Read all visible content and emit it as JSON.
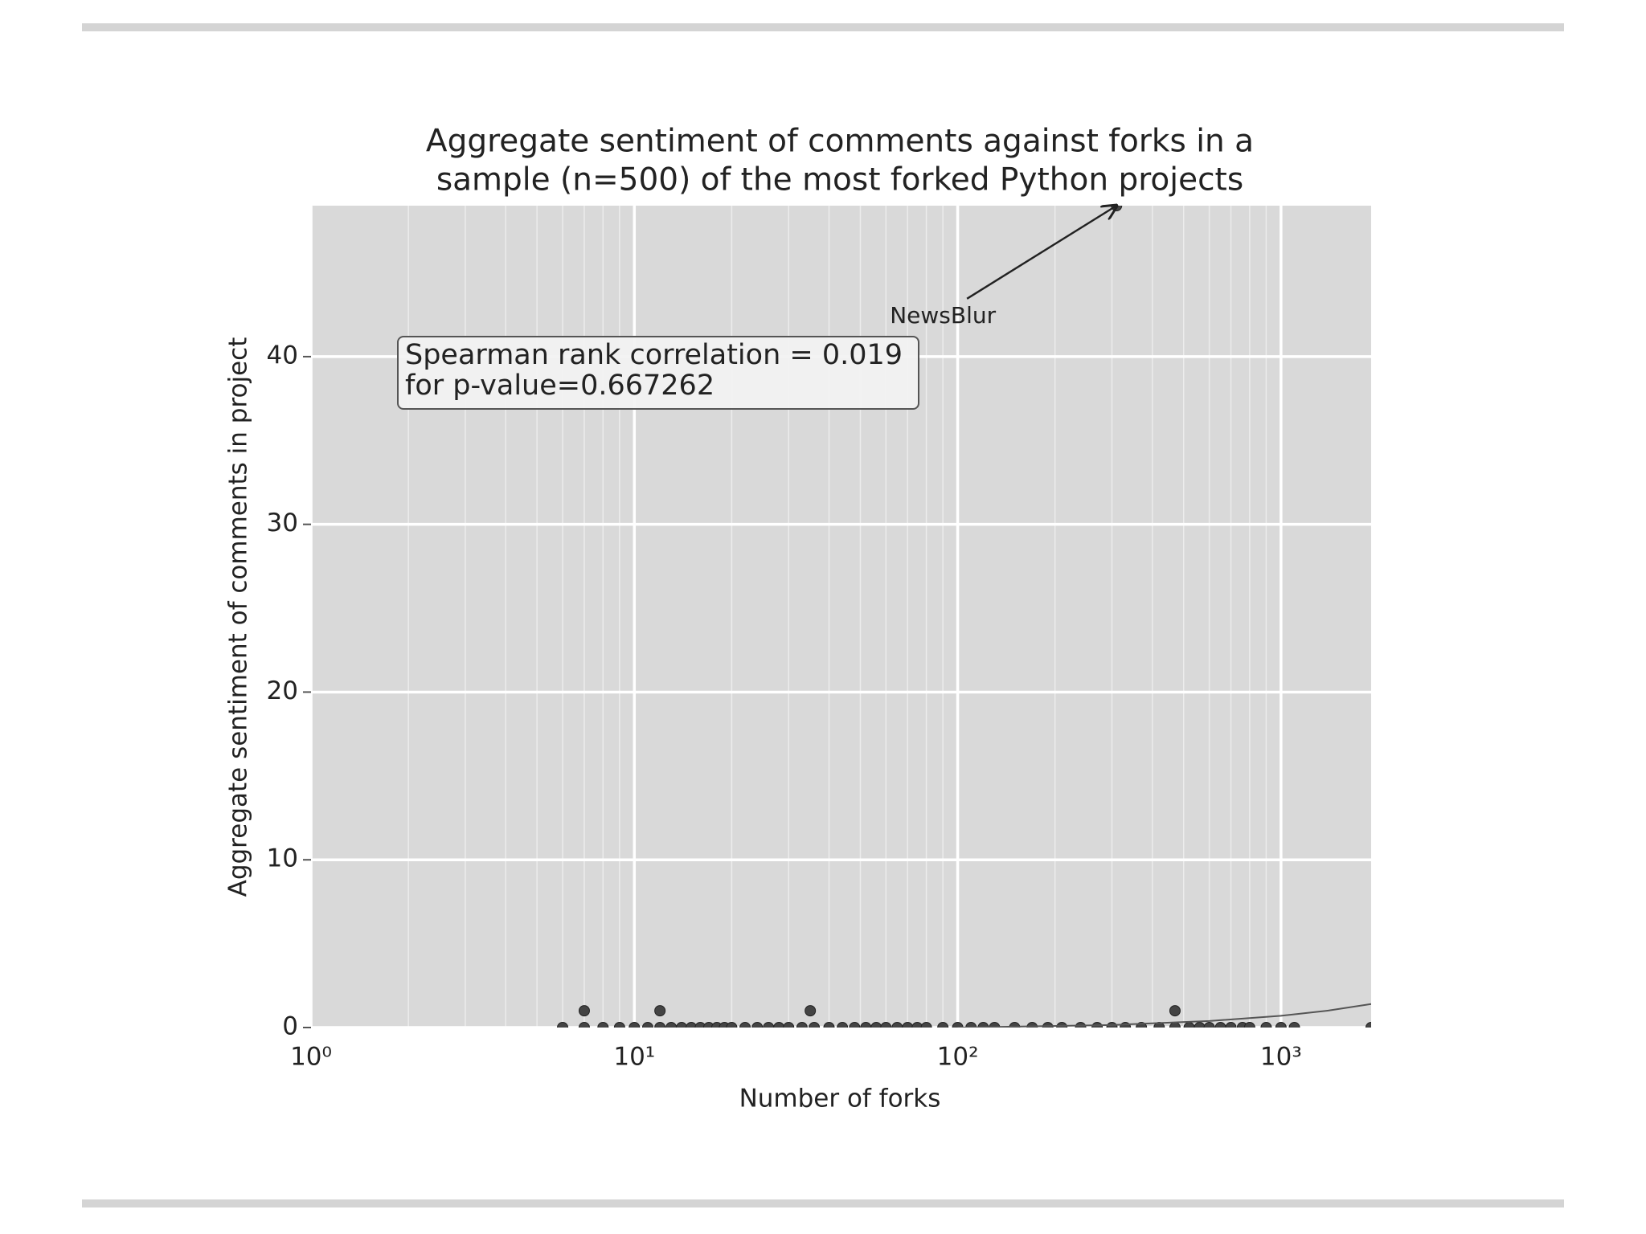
{
  "chart_data": {
    "type": "scatter",
    "title": [
      "Aggregate sentiment of comments against forks in a",
      "sample (n=500) of the most forked Python projects"
    ],
    "xlabel": "Number of forks",
    "ylabel": "Aggregate sentiment of comments in project",
    "x_log_scale": true,
    "grid": true,
    "xlim": [
      1,
      1900
    ],
    "ylim": [
      0,
      49
    ],
    "xticks": [
      {
        "value": 1,
        "label": "10⁰"
      },
      {
        "value": 10,
        "label": "10¹"
      },
      {
        "value": 100,
        "label": "10²"
      },
      {
        "value": 1000,
        "label": "10³"
      }
    ],
    "x_minor_ticks": [
      2,
      3,
      4,
      5,
      6,
      7,
      8,
      9,
      20,
      30,
      40,
      50,
      60,
      70,
      80,
      90,
      200,
      300,
      400,
      500,
      600,
      700,
      800,
      900
    ],
    "yticks": [
      0,
      10,
      20,
      30,
      40
    ],
    "series": [
      {
        "color": "#444444",
        "x": [
          6,
          7,
          8,
          9,
          10,
          11,
          12,
          13,
          14,
          15,
          16,
          17,
          18,
          19,
          20,
          22,
          24,
          26,
          28,
          30,
          33,
          36,
          40,
          44,
          48,
          52,
          56,
          60,
          65,
          70,
          75,
          80,
          90,
          100,
          110,
          120,
          130,
          150,
          170,
          190,
          210,
          240,
          270,
          300,
          330,
          370,
          420,
          470,
          520,
          560,
          600,
          650,
          700,
          760,
          800,
          900,
          1000,
          1100,
          1900,
          7,
          12,
          35,
          470,
          310
        ],
        "values": [
          0,
          0,
          0,
          0,
          0,
          0,
          0,
          0,
          0,
          0,
          0,
          0,
          0,
          0,
          0,
          0,
          0,
          0,
          0,
          0,
          0,
          0,
          0,
          0,
          0,
          0,
          0,
          0,
          0,
          0,
          0,
          0,
          0,
          0,
          0,
          0,
          0,
          0,
          0,
          0,
          0,
          0,
          0,
          0,
          0,
          0,
          0,
          0,
          0,
          0,
          0,
          0,
          0,
          0,
          0,
          0,
          0,
          0,
          0,
          1,
          1,
          1,
          1,
          49
        ]
      }
    ],
    "fit": {
      "color": "#555555",
      "x": [
        100,
        300,
        600,
        1000,
        1400,
        1900
      ],
      "values": [
        0,
        0.15,
        0.39,
        0.7,
        1.01,
        1.4
      ]
    },
    "text_box": [
      "Spearman rank correlation = 0.019",
      "for p-value=0.667262"
    ],
    "annotation": {
      "text": "NewsBlur",
      "x": 90,
      "y": 42.4,
      "xy": [
        310,
        49
      ]
    }
  }
}
